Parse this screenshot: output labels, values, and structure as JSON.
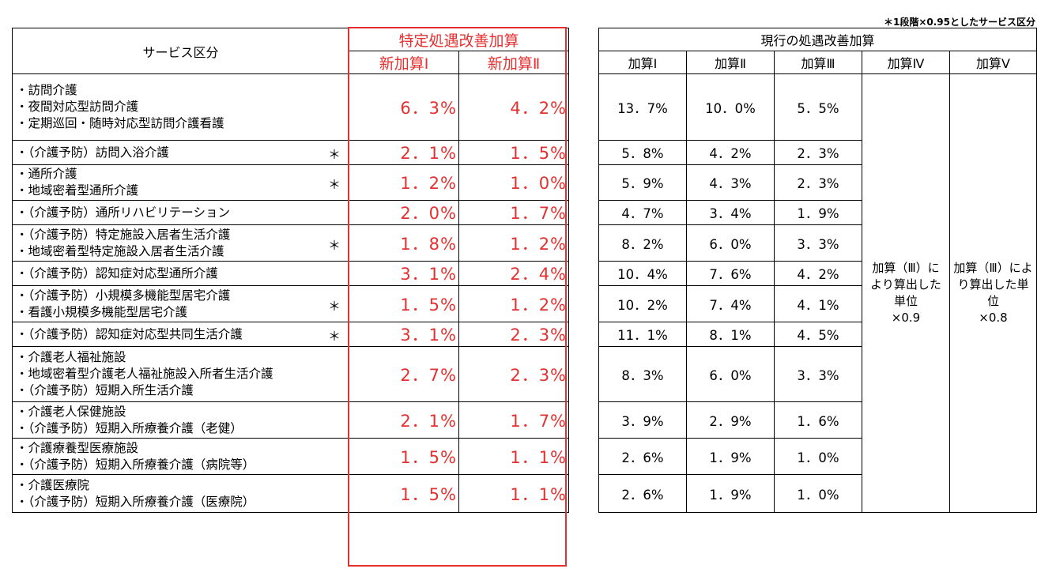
{
  "note": "＊1段階×0.95としたサービス区分",
  "header": {
    "service": "サービス区分",
    "special_group": "特定処遇改善加算",
    "new_1": "新加算Ⅰ",
    "new_2": "新加算Ⅱ",
    "current_group": "現行の処遇改善加算",
    "cur_1": "加算Ⅰ",
    "cur_2": "加算Ⅱ",
    "cur_3": "加算Ⅲ",
    "cur_4": "加算Ⅳ",
    "cur_5": "加算Ⅴ"
  },
  "merged": {
    "kasan4": [
      "加算（Ⅲ）に",
      "より算出した",
      "単位",
      "×0.9"
    ],
    "kasan5": [
      "加算（Ⅲ）によ",
      "り算出した単",
      "位",
      "×0.8"
    ]
  },
  "rows": [
    {
      "services": [
        "・訪問介護",
        "・夜間対応型訪問介護",
        "・定期巡回・随時対応型訪問介護看護"
      ],
      "star": "",
      "new1": "6．3%",
      "new2": "4．2%",
      "c1": "13．7%",
      "c2": "10．0%",
      "c3": "5．5%"
    },
    {
      "services": [
        "・（介護予防）訪問入浴介護"
      ],
      "star": "＊",
      "new1": "2．1%",
      "new2": "1．5%",
      "c1": "5．8%",
      "c2": "4．2%",
      "c3": "2．3%"
    },
    {
      "services": [
        "・通所介護",
        "・地域密着型通所介護"
      ],
      "star": "＊",
      "new1": "1．2%",
      "new2": "1．0%",
      "c1": "5．9%",
      "c2": "4．3%",
      "c3": "2．3%"
    },
    {
      "services": [
        "・（介護予防）通所リハビリテーション"
      ],
      "star": "",
      "new1": "2．0%",
      "new2": "1．7%",
      "c1": "4．7%",
      "c2": "3．4%",
      "c3": "1．9%"
    },
    {
      "services": [
        "・（介護予防）特定施設入居者生活介護",
        "・地域密着型特定施設入居者生活介護"
      ],
      "star": "＊",
      "new1": "1．8%",
      "new2": "1．2%",
      "c1": "8．2%",
      "c2": "6．0%",
      "c3": "3．3%"
    },
    {
      "services": [
        "・（介護予防）認知症対応型通所介護"
      ],
      "star": "",
      "new1": "3．1%",
      "new2": "2．4%",
      "c1": "10．4%",
      "c2": "7．6%",
      "c3": "4．2%"
    },
    {
      "services": [
        "・（介護予防）小規模多機能型居宅介護",
        "・看護小規模多機能型居宅介護"
      ],
      "star": "＊",
      "new1": "1．5%",
      "new2": "1．2%",
      "c1": "10．2%",
      "c2": "7．4%",
      "c3": "4．1%"
    },
    {
      "services": [
        "・（介護予防）認知症対応型共同生活介護"
      ],
      "star": "＊",
      "new1": "3．1%",
      "new2": "2．3%",
      "c1": "11．1%",
      "c2": "8．1%",
      "c3": "4．5%"
    },
    {
      "services": [
        "・介護老人福祉施設",
        "・地域密着型介護老人福祉施設入所者生活介護",
        "・（介護予防）短期入所生活介護"
      ],
      "star": "",
      "new1": "2．7%",
      "new2": "2．3%",
      "c1": "8．3%",
      "c2": "6．0%",
      "c3": "3．3%"
    },
    {
      "services": [
        "・介護老人保健施設",
        "・（介護予防）短期入所療養介護（老健）"
      ],
      "star": "",
      "new1": "2．1%",
      "new2": "1．7%",
      "c1": "3．9%",
      "c2": "2．9%",
      "c3": "1．6%"
    },
    {
      "services": [
        "・介護療養型医療施設",
        "・（介護予防）短期入所療養介護（病院等）"
      ],
      "star": "",
      "new1": "1．5%",
      "new2": "1．1%",
      "c1": "2．6%",
      "c2": "1．9%",
      "c3": "1．0%"
    },
    {
      "services": [
        "・介護医療院",
        "・（介護予防）短期入所療養介護（医療院）"
      ],
      "star": "",
      "new1": "1．5%",
      "new2": "1．1%",
      "c1": "2．6%",
      "c2": "1．9%",
      "c3": "1．0%"
    }
  ]
}
